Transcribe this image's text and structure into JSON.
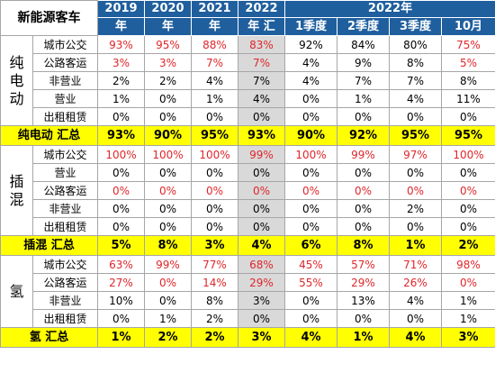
{
  "header": {
    "title": "新能源客车",
    "years": [
      {
        "top": "2019",
        "bottom": "年"
      },
      {
        "top": "2020",
        "bottom": "年"
      },
      {
        "top": "2021",
        "bottom": "年"
      },
      {
        "top": "2022",
        "bottom": "年 汇"
      }
    ],
    "period_title": "2022年",
    "periods": [
      "1季度",
      "2季度",
      "3季度",
      "10月"
    ]
  },
  "groups": [
    {
      "name": "纯电动",
      "rows": [
        {
          "cat": "城市公交",
          "values": [
            "93%",
            "95%",
            "88%",
            "83%",
            "92%",
            "84%",
            "80%",
            "75%"
          ],
          "red": [
            true,
            true,
            true,
            true,
            false,
            false,
            false,
            true
          ]
        },
        {
          "cat": "公路客运",
          "values": [
            "3%",
            "3%",
            "7%",
            "7%",
            "4%",
            "9%",
            "8%",
            "5%"
          ],
          "red": [
            true,
            true,
            true,
            true,
            false,
            false,
            false,
            true
          ]
        },
        {
          "cat": "非营业",
          "values": [
            "2%",
            "2%",
            "4%",
            "7%",
            "4%",
            "7%",
            "7%",
            "8%"
          ],
          "red": [
            false,
            false,
            false,
            false,
            false,
            false,
            false,
            false
          ]
        },
        {
          "cat": "营业",
          "values": [
            "1%",
            "0%",
            "1%",
            "4%",
            "0%",
            "1%",
            "4%",
            "11%"
          ],
          "red": [
            false,
            false,
            false,
            false,
            false,
            false,
            false,
            false
          ]
        },
        {
          "cat": "出租租赁",
          "values": [
            "0%",
            "0%",
            "0%",
            "0%",
            "0%",
            "0%",
            "0%",
            "0%"
          ],
          "red": [
            false,
            false,
            false,
            false,
            false,
            false,
            false,
            false
          ]
        }
      ],
      "total_label": "纯电动 汇总",
      "total": [
        "93%",
        "90%",
        "95%",
        "93%",
        "90%",
        "92%",
        "95%",
        "95%"
      ]
    },
    {
      "name": "插混",
      "rows": [
        {
          "cat": "城市公交",
          "values": [
            "100%",
            "100%",
            "100%",
            "99%",
            "100%",
            "99%",
            "97%",
            "100%"
          ],
          "red": [
            true,
            true,
            true,
            true,
            true,
            true,
            true,
            true
          ]
        },
        {
          "cat": "营业",
          "values": [
            "0%",
            "0%",
            "0%",
            "0%",
            "0%",
            "0%",
            "0%",
            "0%"
          ],
          "red": [
            false,
            false,
            false,
            false,
            false,
            false,
            false,
            false
          ]
        },
        {
          "cat": "公路客运",
          "values": [
            "0%",
            "0%",
            "0%",
            "0%",
            "0%",
            "0%",
            "0%",
            "0%"
          ],
          "red": [
            true,
            true,
            true,
            true,
            true,
            true,
            true,
            true
          ]
        },
        {
          "cat": "非营业",
          "values": [
            "0%",
            "0%",
            "0%",
            "0%",
            "0%",
            "0%",
            "2%",
            "0%"
          ],
          "red": [
            false,
            false,
            false,
            false,
            false,
            false,
            false,
            false
          ]
        },
        {
          "cat": "出租租赁",
          "values": [
            "0%",
            "0%",
            "0%",
            "0%",
            "0%",
            "0%",
            "0%",
            "0%"
          ],
          "red": [
            false,
            false,
            false,
            false,
            false,
            false,
            false,
            false
          ]
        }
      ],
      "total_label": "插混 汇总",
      "total": [
        "5%",
        "8%",
        "3%",
        "4%",
        "6%",
        "8%",
        "1%",
        "2%"
      ]
    },
    {
      "name": "氢",
      "rows": [
        {
          "cat": "城市公交",
          "values": [
            "63%",
            "99%",
            "77%",
            "68%",
            "45%",
            "57%",
            "71%",
            "98%"
          ],
          "red": [
            true,
            true,
            true,
            true,
            true,
            true,
            true,
            true
          ]
        },
        {
          "cat": "公路客运",
          "values": [
            "27%",
            "0%",
            "14%",
            "29%",
            "55%",
            "29%",
            "26%",
            "0%"
          ],
          "red": [
            true,
            true,
            true,
            true,
            true,
            true,
            true,
            true
          ]
        },
        {
          "cat": "非营业",
          "values": [
            "10%",
            "0%",
            "8%",
            "3%",
            "0%",
            "13%",
            "4%",
            "1%"
          ],
          "red": [
            false,
            false,
            false,
            false,
            false,
            false,
            false,
            false
          ]
        },
        {
          "cat": "出租租赁",
          "values": [
            "0%",
            "1%",
            "2%",
            "0%",
            "0%",
            "0%",
            "0%",
            "1%"
          ],
          "red": [
            false,
            false,
            false,
            false,
            false,
            false,
            false,
            false
          ]
        }
      ],
      "total_label": "氢 汇总",
      "total": [
        "1%",
        "2%",
        "2%",
        "3%",
        "4%",
        "1%",
        "4%",
        "3%"
      ]
    }
  ]
}
